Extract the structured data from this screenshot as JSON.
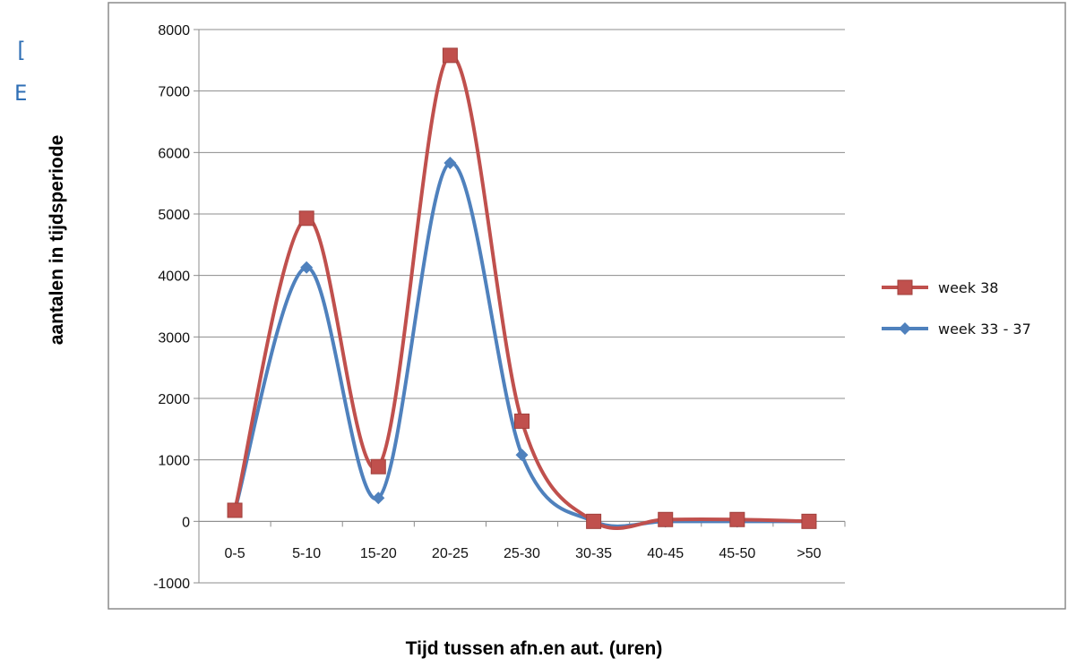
{
  "edge_fragments": [
    "[",
    "E"
  ],
  "chart_data": {
    "type": "line",
    "smooth": true,
    "categories": [
      "0-5",
      "5-10",
      "15-20",
      "20-25",
      "25-30",
      "30-35",
      "40-45",
      "45-50",
      ">50"
    ],
    "series": [
      {
        "name": "week 38",
        "color": "#c0504d",
        "marker": "square",
        "values": [
          180,
          4930,
          890,
          7580,
          1630,
          0,
          30,
          30,
          0
        ]
      },
      {
        "name": "week 33 - 37",
        "color": "#4f81bd",
        "marker": "diamond",
        "values": [
          170,
          4130,
          380,
          5830,
          1080,
          0,
          0,
          0,
          0
        ]
      }
    ],
    "xlabel": "Tijd tussen afn.en aut. (uren)",
    "ylabel": "aantalen in tijdsperiode",
    "ylim": [
      -1000,
      8000
    ],
    "yticks": [
      -1000,
      0,
      1000,
      2000,
      3000,
      4000,
      5000,
      6000,
      7000,
      8000
    ],
    "grid": true,
    "legend_position": "right"
  }
}
